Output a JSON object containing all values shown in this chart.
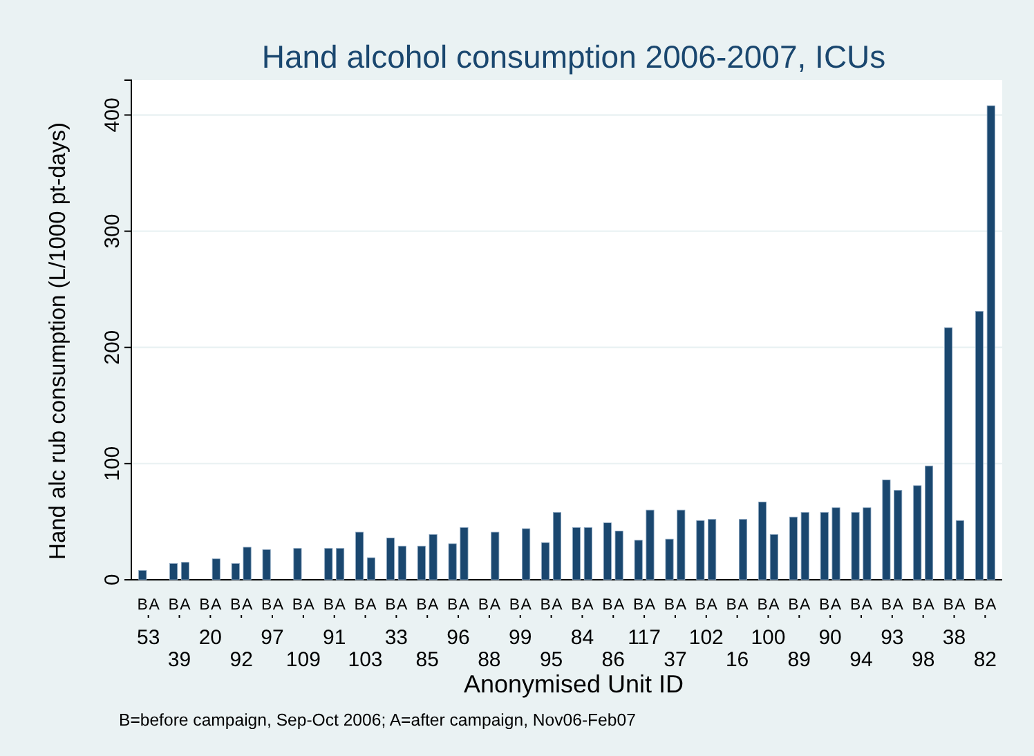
{
  "chart_data": {
    "type": "bar",
    "title": "Hand alcohol consumption 2006-2007, ICUs",
    "xlabel": "Anonymised Unit ID",
    "ylabel": "Hand alc rub consumption (L/1000 pt-days)",
    "annotations": [
      "B=before campaign, Sep-Oct 2006; A=after campaign, Nov06-Feb07"
    ],
    "categories": [
      "53",
      "39",
      "20",
      "92",
      "97",
      "109",
      "91",
      "103",
      "33",
      "85",
      "96",
      "88",
      "99",
      "95",
      "84",
      "86",
      "117",
      "37",
      "102",
      "16",
      "100",
      "89",
      "90",
      "94",
      "93",
      "98",
      "38",
      "82"
    ],
    "series": [
      {
        "name": "B",
        "color": "#1a476f",
        "values": [
          8,
          14,
          null,
          14,
          26,
          27,
          27,
          41,
          36,
          29,
          31,
          null,
          null,
          32,
          45,
          49,
          34,
          35,
          51,
          null,
          67,
          54,
          58,
          58,
          86,
          81,
          217,
          231
        ]
      },
      {
        "name": "A",
        "color": "#1a476f",
        "values": [
          null,
          15,
          18,
          28,
          null,
          null,
          27,
          19,
          29,
          39,
          45,
          41,
          44,
          58,
          45,
          42,
          60,
          60,
          52,
          52,
          39,
          58,
          62,
          62,
          77,
          98,
          51,
          408
        ]
      }
    ],
    "ylim": [
      0,
      430
    ],
    "yticks": [
      0,
      100,
      200,
      300,
      400
    ],
    "grid": "y"
  }
}
